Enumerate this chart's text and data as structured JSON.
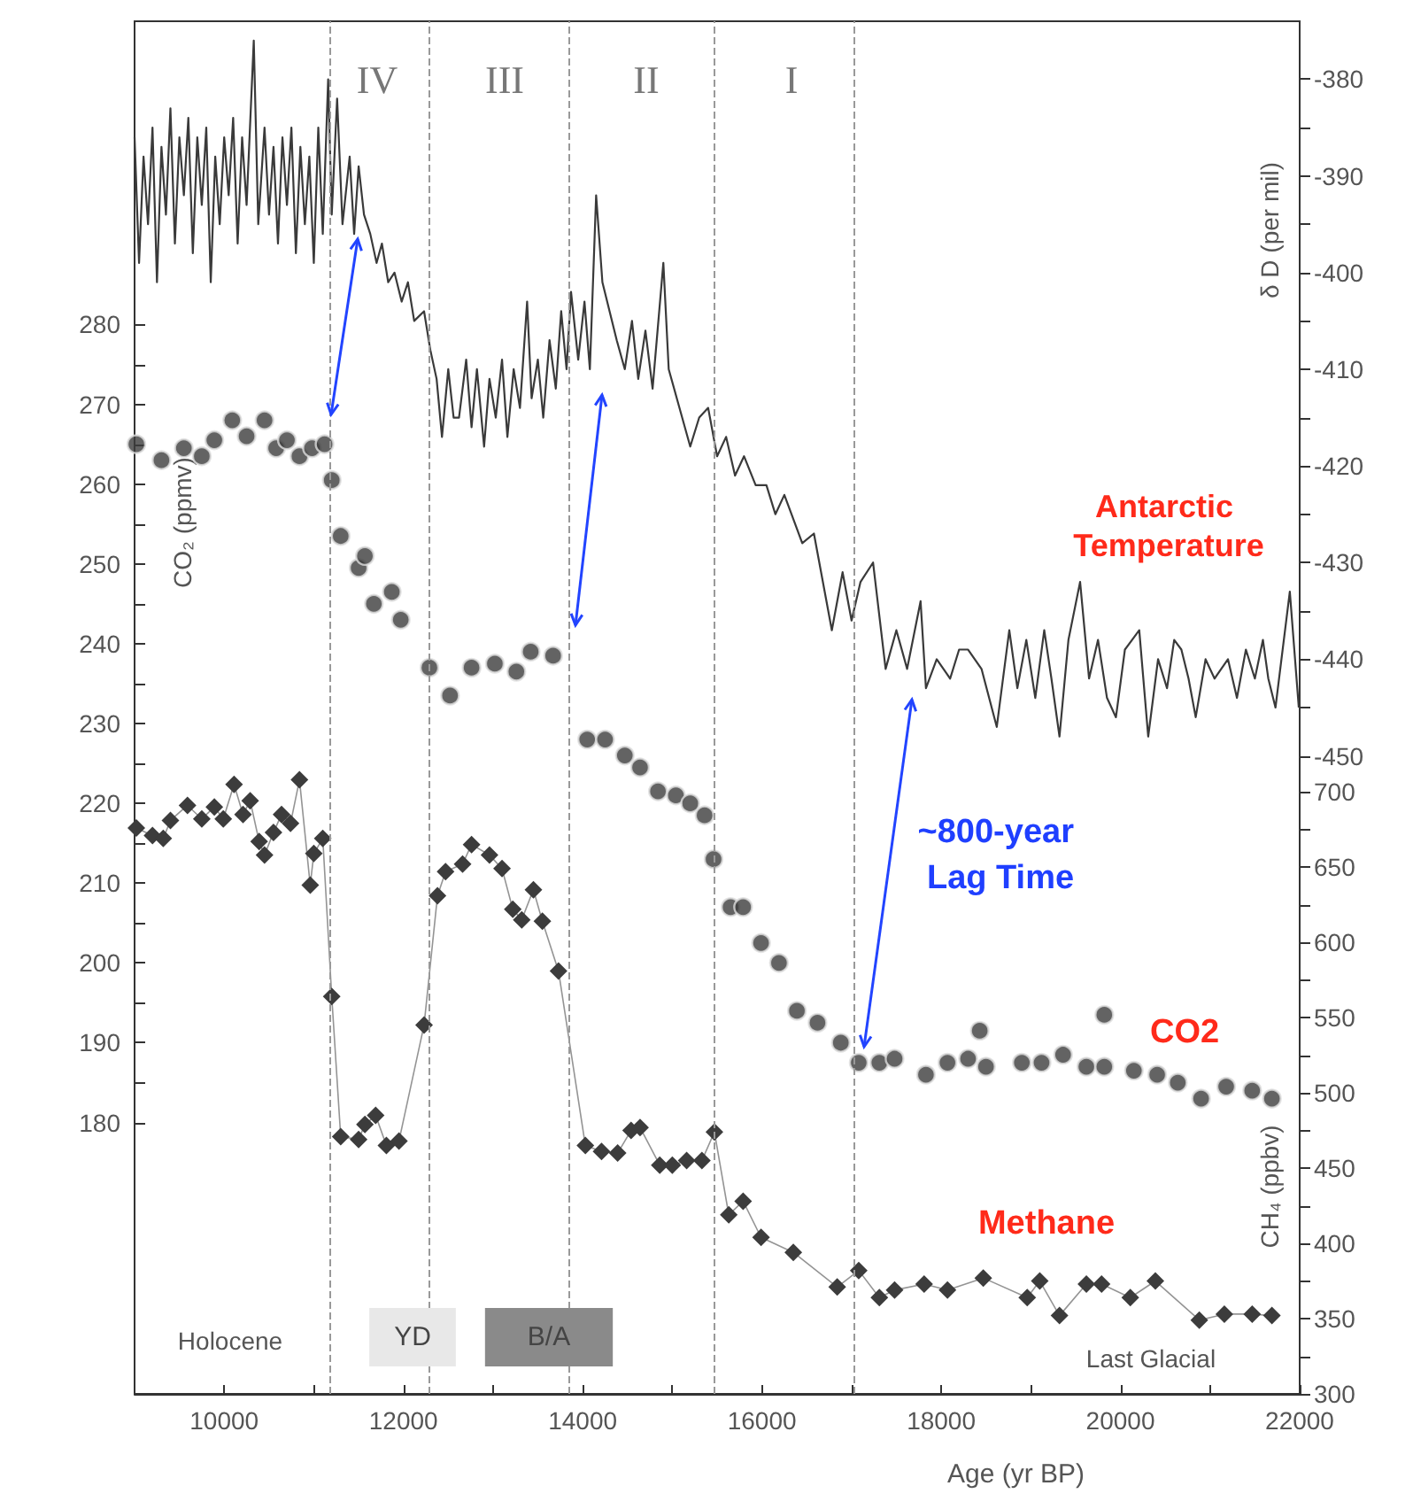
{
  "chart_data": {
    "type": "line",
    "xlabel": "Age (yr BP)",
    "ylabel": "CO₂ (ppmv)",
    "y2label": "δ D (per mil)",
    "y3label": "CH₄ (ppbv)",
    "xlim": [
      9000,
      22000
    ],
    "xticks": [
      10000,
      {
        "value": 11000,
        "label": null
      },
      12000,
      {
        "value": 13000,
        "label": null
      },
      14000,
      {
        "value": 15000,
        "label": null
      },
      16000,
      {
        "value": 17000,
        "label": null
      },
      18000,
      {
        "value": 19000,
        "label": null
      },
      20000,
      {
        "value": 21000,
        "label": null
      },
      22000
    ],
    "ylim": [
      146,
      318
    ],
    "yticks": [
      180,
      {
        "value": 185,
        "label": null
      },
      190,
      {
        "value": 195,
        "label": null
      },
      200,
      {
        "value": 205,
        "label": null
      },
      210,
      {
        "value": 215,
        "label": null
      },
      220,
      {
        "value": 225,
        "label": null
      },
      230,
      {
        "value": 235,
        "label": null
      },
      240,
      {
        "value": 245,
        "label": null
      },
      250,
      {
        "value": 255,
        "label": null
      },
      260,
      {
        "value": 265,
        "label": null
      },
      270,
      {
        "value": 275,
        "label": null
      },
      280
    ],
    "y2lim": [
      -516,
      -374
    ],
    "y2ticks": [
      -450,
      {
        "value": -445,
        "label": null
      },
      -440,
      {
        "value": -435,
        "label": null
      },
      -430,
      {
        "value": -425,
        "label": null
      },
      -420,
      {
        "value": -415,
        "label": null
      },
      -410,
      {
        "value": -405,
        "label": null
      },
      -400,
      {
        "value": -395,
        "label": null
      },
      -390,
      {
        "value": -385,
        "label": null
      },
      -380
    ],
    "y3lim": [
      300,
      1212
    ],
    "y3ticks": [
      300,
      {
        "value": 325,
        "label": null
      },
      350,
      {
        "value": 375,
        "label": null
      },
      400,
      {
        "value": 425,
        "label": null
      },
      450,
      {
        "value": 475,
        "label": null
      },
      500,
      {
        "value": 525,
        "label": null
      },
      550,
      {
        "value": 575,
        "label": null
      },
      600,
      {
        "value": 625,
        "label": null
      },
      650,
      {
        "value": 675,
        "label": null
      },
      700
    ],
    "series": [
      {
        "axis": "y2",
        "marker": "none",
        "color": "#3a3a3a",
        "x": [
          9000,
          9050,
          9100,
          9150,
          9200,
          9250,
          9300,
          9350,
          9400,
          9450,
          9500,
          9550,
          9600,
          9650,
          9700,
          9750,
          9800,
          9850,
          9900,
          9950,
          10000,
          10050,
          10100,
          10150,
          10200,
          10250,
          10330,
          10380,
          10450,
          10500,
          10550,
          10600,
          10650,
          10700,
          10750,
          10800,
          10850,
          10900,
          10950,
          11000,
          11050,
          11100,
          11160,
          11200,
          11260,
          11320,
          11400,
          11450,
          11500,
          11560,
          11630,
          11700,
          11760,
          11830,
          11900,
          11980,
          12050,
          12120,
          12230,
          12300,
          12370,
          12430,
          12500,
          12560,
          12620,
          12700,
          12760,
          12820,
          12900,
          12960,
          13030,
          13100,
          13160,
          13230,
          13300,
          13380,
          13430,
          13500,
          13560,
          13630,
          13700,
          13760,
          13820,
          13870,
          13950,
          14020,
          14080,
          14150,
          14220,
          14300,
          14380,
          14470,
          14550,
          14620,
          14700,
          14780,
          14900,
          14960,
          15050,
          15200,
          15300,
          15400,
          15500,
          15600,
          15700,
          15800,
          15930,
          16050,
          16150,
          16250,
          16330,
          16450,
          16580,
          16700,
          16780,
          16900,
          17000,
          17100,
          17240,
          17380,
          17500,
          17620,
          17770,
          17830,
          17950,
          18100,
          18200,
          18300,
          18450,
          18620,
          18760,
          18850,
          18950,
          19050,
          19150,
          19230,
          19320,
          19420,
          19550,
          19650,
          19750,
          19850,
          19950,
          20050,
          20210,
          20310,
          20420,
          20520,
          20600,
          20680,
          20760,
          20840,
          20950,
          21050,
          21200,
          21300,
          21400,
          21500,
          21590,
          21650,
          21730,
          21890,
          21990
        ],
        "values": [
          -386,
          -399,
          -388,
          -395,
          -385,
          -401,
          -387,
          -394,
          -383,
          -397,
          -386,
          -392,
          -384,
          -398,
          -386,
          -393,
          -385,
          -401,
          -388,
          -395,
          -386,
          -392,
          -384,
          -397,
          -386,
          -393,
          -376,
          -395,
          -385,
          -394,
          -387,
          -397,
          -386,
          -393,
          -385,
          -398,
          -387,
          -395,
          -388,
          -399,
          -385,
          -396,
          -380,
          -394,
          -382,
          -395,
          -388,
          -396,
          -389,
          -394,
          -396,
          -399,
          -397,
          -401,
          -400,
          -403,
          -401,
          -405,
          -404,
          -408,
          -411,
          -417,
          -410,
          -415,
          -415,
          -409,
          -416,
          -410,
          -418,
          -411,
          -415,
          -409,
          -417,
          -410,
          -414,
          -403,
          -413,
          -409,
          -415,
          -407,
          -412,
          -404,
          -410,
          -402,
          -409,
          -403,
          -410,
          -392,
          -401,
          -404,
          -407,
          -410,
          -405,
          -411,
          -406,
          -412,
          -399,
          -410,
          -413,
          -418,
          -415,
          -414,
          -419,
          -417,
          -421,
          -419,
          -422,
          -422,
          -425,
          -423,
          -425,
          -428,
          -427,
          -433,
          -437,
          -431,
          -436,
          -432,
          -430,
          -441,
          -437,
          -441,
          -434,
          -443,
          -440,
          -442,
          -439,
          -439,
          -441,
          -447,
          -437,
          -443,
          -438,
          -444,
          -437,
          -442,
          -448,
          -438,
          -432,
          -442,
          -438,
          -444,
          -446,
          -439,
          -437,
          -448,
          -440,
          -443,
          -438,
          -439,
          -442,
          -446,
          -440,
          -442,
          -440,
          -444,
          -439,
          -442,
          -438,
          -442,
          -445,
          -433,
          -445
        ]
      },
      {
        "type": "scatter",
        "marker": "circle",
        "color": "#3c3c3c",
        "x": [
          9020,
          9300,
          9550,
          9750,
          9890,
          10090,
          10250,
          10450,
          10580,
          10700,
          10840,
          10980,
          11120,
          11200,
          11300,
          11500,
          11570,
          11670,
          11870,
          11970,
          12290,
          12520,
          12760,
          13020,
          13260,
          13420,
          13670,
          14050,
          14250,
          14470,
          14640,
          14840,
          15040,
          15200,
          15360,
          15460,
          15650,
          15790,
          15990,
          16190,
          16390,
          16620,
          16880,
          17080,
          17310,
          17480,
          17830,
          18070,
          18300,
          18430,
          18500,
          18900,
          19120,
          19360,
          19620,
          19820,
          19820,
          20150,
          20410,
          20640,
          20900,
          21180,
          21470,
          21690
        ],
        "values": [
          265,
          263,
          264.5,
          263.5,
          265.5,
          268,
          266,
          268,
          264.5,
          265.5,
          263.5,
          264.5,
          265,
          260.5,
          253.5,
          249.5,
          251,
          245,
          246.5,
          243,
          237,
          233.5,
          237,
          237.5,
          236.5,
          239,
          238.5,
          228,
          228,
          226,
          224.5,
          221.5,
          221,
          220,
          218.5,
          213,
          207,
          207,
          202.5,
          200,
          194,
          192.5,
          190,
          187.5,
          187.5,
          188,
          186,
          187.5,
          188,
          191.5,
          187,
          187.5,
          187.5,
          188.5,
          187,
          193.5,
          187,
          186.5,
          186,
          185,
          183,
          184.5,
          184,
          183
        ]
      },
      {
        "axis": "y3",
        "marker": "diamond",
        "color": "#3c3c3c",
        "x": [
          9020,
          9200,
          9320,
          9400,
          9590,
          9750,
          9890,
          9990,
          10110,
          10210,
          10290,
          10390,
          10450,
          10550,
          10640,
          10740,
          10840,
          10960,
          11000,
          11100,
          11200,
          11300,
          11500,
          11570,
          11690,
          11810,
          11950,
          12230,
          12380,
          12470,
          12660,
          12760,
          12960,
          13100,
          13220,
          13320,
          13450,
          13550,
          13730,
          14030,
          14210,
          14390,
          14540,
          14640,
          14860,
          15000,
          15160,
          15330,
          15470,
          15630,
          15790,
          15990,
          16350,
          16840,
          17080,
          17310,
          17480,
          17810,
          18070,
          18470,
          18960,
          19100,
          19320,
          19620,
          19790,
          20110,
          20390,
          20880,
          21160,
          21470,
          21690
        ],
        "values": [
          676,
          671,
          669,
          681,
          691,
          682,
          690,
          682,
          705,
          685,
          694,
          667,
          658,
          673,
          685,
          679,
          708,
          638,
          659,
          669,
          564,
          471,
          469,
          479,
          485,
          465,
          468,
          545,
          631,
          647,
          652,
          665,
          658,
          649,
          622,
          615,
          635,
          614,
          581,
          465,
          461,
          460,
          475,
          477,
          452,
          452,
          455,
          455,
          474,
          419,
          428,
          404,
          394,
          371,
          382,
          364,
          369,
          373,
          369,
          377,
          364,
          375,
          352,
          373,
          373,
          364,
          375,
          349,
          353,
          353,
          352
        ]
      }
    ],
    "ref_lines": [
      {
        "axis": "x",
        "value": 11180,
        "label": null,
        "color": "#999999",
        "line_style": "dashed"
      },
      {
        "axis": "x",
        "value": 12290,
        "label": null,
        "color": "#999999",
        "line_style": "dashed"
      },
      {
        "axis": "x",
        "value": 13850,
        "label": null,
        "color": "#999999",
        "line_style": "dashed"
      },
      {
        "axis": "x",
        "value": 15460,
        "label": null,
        "color": "#999999",
        "line_style": "dashed"
      },
      {
        "axis": "x",
        "value": 17020,
        "label": null,
        "color": "#999999",
        "line_style": "dashed"
      }
    ],
    "annotations": [
      "IV",
      "III",
      "II",
      "I",
      "Antarctic Temperature",
      "~800-year Lag Time",
      "CO2",
      "Methane",
      "Holocene",
      "YD",
      "B/A",
      "Last Glacial"
    ]
  }
}
